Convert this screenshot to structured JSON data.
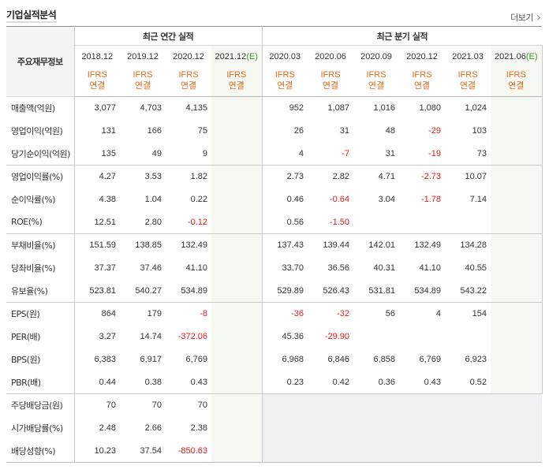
{
  "header": {
    "title": "기업실적분석",
    "more_label": "더보기"
  },
  "table": {
    "row_header_label": "주요재무정보",
    "group_annual": "최근 연간 실적",
    "group_quarterly": "최근 분기 실적",
    "annual_periods": [
      "2018.12",
      "2019.12",
      "2020.12",
      "2021.12"
    ],
    "annual_estimate_suffix": "(E)",
    "quarterly_periods": [
      "2020.03",
      "2020.06",
      "2020.09",
      "2020.12",
      "2021.03",
      "2021.06"
    ],
    "quarterly_estimate_suffix": "(E)",
    "accounting_standard": "IFRS",
    "consolidation_basis": "연결",
    "rows": [
      {
        "label": "매출액(억원)",
        "annual": [
          "3,077",
          "4,703",
          "4,135",
          ""
        ],
        "quarterly": [
          "952",
          "1,087",
          "1,016",
          "1,080",
          "1,024",
          ""
        ]
      },
      {
        "label": "영업이익(억원)",
        "annual": [
          "131",
          "166",
          "75",
          ""
        ],
        "quarterly": [
          "26",
          "31",
          "48",
          "-29",
          "103",
          ""
        ]
      },
      {
        "label": "당기순이익(억원)",
        "annual": [
          "135",
          "49",
          "9",
          ""
        ],
        "quarterly": [
          "4",
          "-7",
          "31",
          "-19",
          "73",
          ""
        ]
      },
      {
        "label": "영업이익률(%)",
        "annual": [
          "4.27",
          "3.53",
          "1.82",
          ""
        ],
        "quarterly": [
          "2.73",
          "2.82",
          "4.71",
          "-2.73",
          "10.07",
          ""
        ]
      },
      {
        "label": "순이익률(%)",
        "annual": [
          "4.38",
          "1.04",
          "0.22",
          ""
        ],
        "quarterly": [
          "0.46",
          "-0.64",
          "3.04",
          "-1.78",
          "7.14",
          ""
        ]
      },
      {
        "label": "ROE(%)",
        "annual": [
          "12.51",
          "2.80",
          "-0.12",
          ""
        ],
        "quarterly": [
          "0.56",
          "-1.50",
          "",
          "",
          "",
          ""
        ]
      },
      {
        "label": "부채비율(%)",
        "annual": [
          "151.59",
          "138.85",
          "132.49",
          ""
        ],
        "quarterly": [
          "137.43",
          "139.44",
          "142.01",
          "132.49",
          "134.28",
          ""
        ]
      },
      {
        "label": "당좌비율(%)",
        "annual": [
          "37.37",
          "37.46",
          "41.10",
          ""
        ],
        "quarterly": [
          "33.70",
          "36.56",
          "40.31",
          "41.10",
          "40.55",
          ""
        ]
      },
      {
        "label": "유보율(%)",
        "annual": [
          "523.81",
          "540.27",
          "534.89",
          ""
        ],
        "quarterly": [
          "529.89",
          "526.43",
          "531.81",
          "534.89",
          "543.22",
          ""
        ]
      },
      {
        "label": "EPS(원)",
        "annual": [
          "864",
          "179",
          "-8",
          ""
        ],
        "quarterly": [
          "-36",
          "-32",
          "56",
          "4",
          "154",
          ""
        ]
      },
      {
        "label": "PER(배)",
        "annual": [
          "3.27",
          "14.74",
          "-372.06",
          ""
        ],
        "quarterly": [
          "45.36",
          "-29.90",
          "",
          "",
          "",
          ""
        ]
      },
      {
        "label": "BPS(원)",
        "annual": [
          "6,383",
          "6,917",
          "6,769",
          ""
        ],
        "quarterly": [
          "6,968",
          "6,846",
          "6,858",
          "6,769",
          "6,923",
          ""
        ]
      },
      {
        "label": "PBR(배)",
        "annual": [
          "0.44",
          "0.38",
          "0.43",
          ""
        ],
        "quarterly": [
          "0.23",
          "0.42",
          "0.36",
          "0.43",
          "0.52",
          ""
        ]
      },
      {
        "label": "주당배당금(원)",
        "annual": [
          "70",
          "70",
          "70",
          ""
        ],
        "quarterly": [
          "",
          "",
          "",
          "",
          "",
          ""
        ]
      },
      {
        "label": "시가배당률(%)",
        "annual": [
          "2.48",
          "2.66",
          "2.38",
          ""
        ],
        "quarterly": [
          "",
          "",
          "",
          "",
          "",
          ""
        ]
      },
      {
        "label": "배당성향(%)",
        "annual": [
          "10.23",
          "37.54",
          "-850.63",
          ""
        ],
        "quarterly": [
          "",
          "",
          "",
          "",
          "",
          ""
        ]
      }
    ]
  },
  "colors": {
    "negative": "#dd1c1c",
    "ifrs": "#e36b1a",
    "estimate_mark": "#4e8d2c",
    "estimate_bg": "#f5f9f1",
    "empty_bg": "#f0f0f0"
  }
}
